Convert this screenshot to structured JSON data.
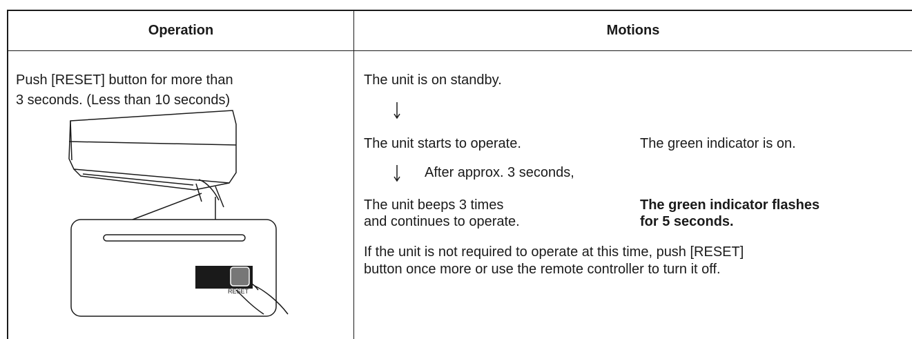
{
  "header": {
    "operation": "Operation",
    "motions": "Motions"
  },
  "operation": {
    "lines": [
      "Push [RESET] button for more than",
      "3 seconds. (Less than 10 seconds)"
    ],
    "illustration_label": "RESET"
  },
  "motions": {
    "standby": "The unit is on standby.",
    "starts": "The unit starts to operate.",
    "indicator_on": "The green indicator is on.",
    "after": "After approx. 3 seconds,",
    "beeps": [
      "The unit beeps 3 times",
      "and continues to operate."
    ],
    "flashes": [
      "The green indicator flashes",
      "for 5 seconds."
    ],
    "note": [
      "If the unit is not required to operate at this time, push [RESET]",
      "button once more or use the remote controller to turn it off."
    ]
  }
}
